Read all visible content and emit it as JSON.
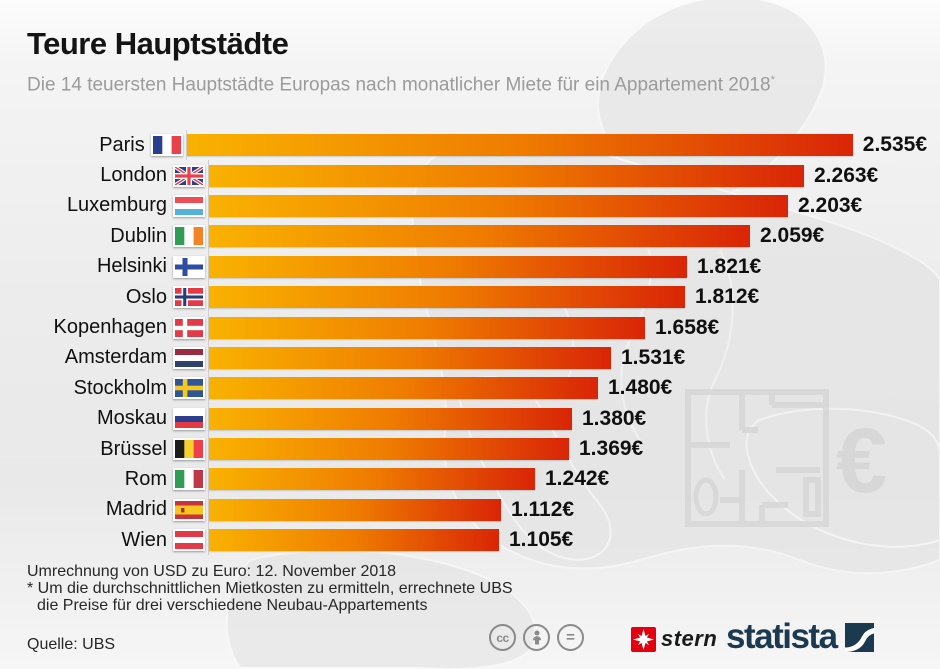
{
  "header": {
    "title": "Teure Hauptstädte",
    "subtitle": "Die 14 teuersten Hauptstädte Europas nach monatlicher Miete für ein Appartement 2018",
    "footnote_mark": "*"
  },
  "chart_data": {
    "type": "bar",
    "orientation": "horizontal",
    "title": "Teure Hauptstädte",
    "subtitle": "Die 14 teuersten Hauptstädte Europas nach monatlicher Miete für ein Appartement 2018",
    "unit": "€ pro Monat",
    "xlim": [
      0,
      2535
    ],
    "grid": false,
    "legend": false,
    "categories": [
      "Paris",
      "London",
      "Luxemburg",
      "Dublin",
      "Helsinki",
      "Oslo",
      "Kopenhagen",
      "Amsterdam",
      "Stockholm",
      "Moskau",
      "Brüssel",
      "Rom",
      "Madrid",
      "Wien"
    ],
    "values": [
      2535,
      2263,
      2203,
      2059,
      1821,
      1812,
      1658,
      1531,
      1480,
      1380,
      1369,
      1242,
      1112,
      1105
    ],
    "value_labels": [
      "2.535€",
      "2.263€",
      "2.203€",
      "2.059€",
      "1.821€",
      "1.812€",
      "1.658€",
      "1.531€",
      "1.480€",
      "1.380€",
      "1.369€",
      "1.242€",
      "1.112€",
      "1.105€"
    ],
    "flags": [
      "france",
      "united-kingdom",
      "luxembourg",
      "ireland",
      "finland",
      "norway",
      "denmark",
      "netherlands",
      "sweden",
      "russia",
      "belgium",
      "italy",
      "spain",
      "austria"
    ],
    "bar_colors": {
      "start": "#F9B200",
      "mid": "#EF7C00",
      "end": "#D92507"
    }
  },
  "footer": {
    "note": "Umrechnung von USD zu Euro: 12. November 2018",
    "footnote_line1": "* Um die durchschnittlichen Mietkosten zu ermitteln, errechnete UBS",
    "footnote_line2": "die Preise für drei verschiedene Neubau-Appartements",
    "source": "Quelle: UBS"
  },
  "logos": {
    "license_icons": [
      "cc",
      "attribution",
      "no-derivatives"
    ],
    "cc_label": "cc",
    "equals_label": "=",
    "stern_label": "stern",
    "statista_label": "statista",
    "statista_navy": "#1b3a50",
    "stern_red": "#e3000f"
  }
}
